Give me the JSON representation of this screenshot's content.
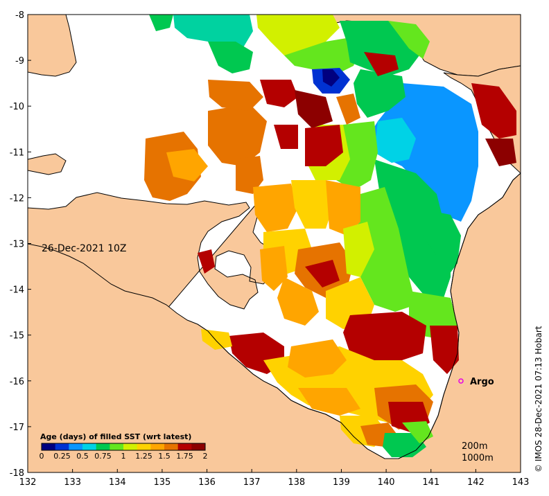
{
  "map": {
    "date_label": "26-Dec-2021 10Z",
    "credit": "© IMOS 28-Dec-2021 07:13 Hobart",
    "lon_ticks": [
      "132",
      "133",
      "134",
      "135",
      "136",
      "137",
      "138",
      "139",
      "140",
      "141",
      "142",
      "143"
    ],
    "lat_ticks": [
      "-8",
      "-9",
      "-10",
      "-11",
      "-12",
      "-13",
      "-14",
      "-15",
      "-16",
      "-17",
      "-18"
    ],
    "lon_range": [
      132,
      143
    ],
    "lat_range": [
      -18,
      -8
    ],
    "colors": {
      "land": "#f9c89b",
      "ocean_nodata": "#ffffff",
      "coastline": "#000000",
      "argo_marker": "#e600e6"
    }
  },
  "legend": {
    "title": "Age (days) of filled SST (wrt latest)",
    "ticks": [
      "0",
      "0.25",
      "0.5",
      "0.75",
      "1",
      "1.25",
      "1.5",
      "1.75",
      "2"
    ],
    "colors": [
      "#000080",
      "#0032d2",
      "#0a96ff",
      "#00d2e6",
      "#00c850",
      "#64e61e",
      "#d2f000",
      "#ffd200",
      "#ffa500",
      "#e67300",
      "#b40000",
      "#8c0000"
    ]
  },
  "argo": {
    "label": "Argo",
    "lon": 141.7,
    "lat": -16.0
  },
  "depth_contours": {
    "labels": [
      "200m",
      "1000m"
    ]
  }
}
